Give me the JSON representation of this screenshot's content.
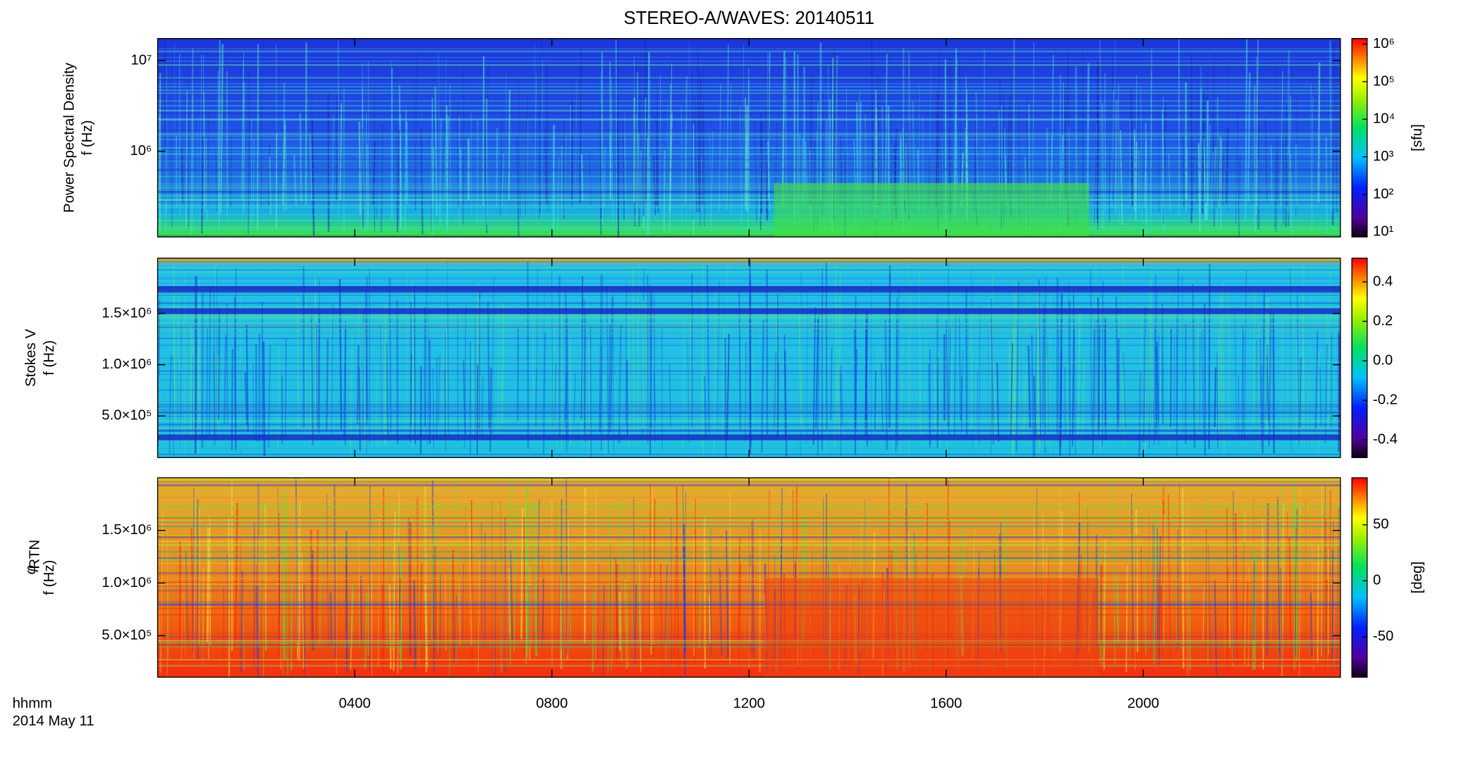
{
  "chart_data": [
    {
      "type": "heatmap",
      "title": "STEREO-A/WAVES: 20140511",
      "ylabel": [
        "Power Spectral Density",
        "f (Hz)"
      ],
      "ylog": true,
      "ylim": [
        113000,
        17600000
      ],
      "yticks": [
        {
          "value": 1000000,
          "label": "10⁶"
        },
        {
          "value": 10000000,
          "label": "10⁷"
        }
      ],
      "colorbar": {
        "log": true,
        "lim": [
          7.4,
          1400000
        ],
        "label": "[sfu]",
        "ticks": [
          {
            "value": 10,
            "label": "10¹"
          },
          {
            "value": 100,
            "label": "10²"
          },
          {
            "value": 1000,
            "label": "10³"
          },
          {
            "value": 10000,
            "label": "10⁴"
          },
          {
            "value": 100000,
            "label": "10⁵"
          },
          {
            "value": 1000000,
            "label": "10⁶"
          }
        ]
      }
    },
    {
      "type": "heatmap",
      "ylabel": [
        "Stokes V",
        "f (Hz)"
      ],
      "ylog": false,
      "ylim": [
        94000,
        2040000
      ],
      "yticks": [
        {
          "value": 500000,
          "label": "5.0×10⁵"
        },
        {
          "value": 1000000,
          "label": "1.0×10⁶"
        },
        {
          "value": 1500000,
          "label": "1.5×10⁶"
        }
      ],
      "colorbar": {
        "log": false,
        "lim": [
          -0.49,
          0.52
        ],
        "ticks": [
          -0.4,
          -0.2,
          {
            "value": 0,
            "label": "0.0"
          },
          0.2,
          0.4
        ]
      }
    },
    {
      "type": "heatmap",
      "ylabel_symbol": "φ",
      "ylabel_subscript": "RTN",
      "ylabel": [
        "f (Hz)"
      ],
      "ylog": false,
      "ylim": [
        105000,
        2000000
      ],
      "yticks": [
        {
          "value": 500000,
          "label": "5.0×10⁵"
        },
        {
          "value": 1000000,
          "label": "1.0×10⁶"
        },
        {
          "value": 1500000,
          "label": "1.5×10⁶"
        }
      ],
      "colorbar": {
        "log": false,
        "lim": [
          -86,
          92
        ],
        "label": "[deg]",
        "ticks": [
          -50,
          0,
          50
        ]
      },
      "xlabel": [
        "hhmm",
        "2014 May 11"
      ],
      "xlim": [
        0,
        24
      ],
      "xticks": [
        {
          "value": 4,
          "label": "0400"
        },
        {
          "value": 8,
          "label": "0800"
        },
        {
          "value": 12,
          "label": "1200"
        },
        {
          "value": 16,
          "label": "1600"
        },
        {
          "value": 20,
          "label": "2000"
        }
      ]
    }
  ]
}
